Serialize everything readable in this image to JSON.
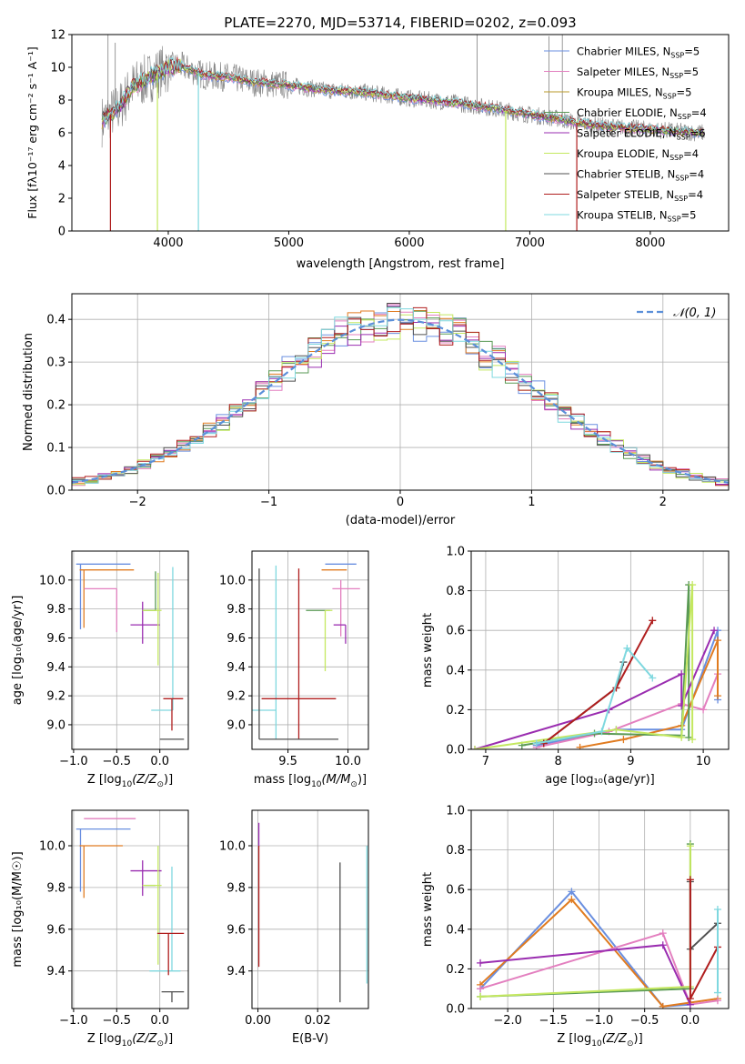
{
  "colors": {
    "Chabrier MILES": "#6a8fe0",
    "Salpeter MILES": "#e37fbf",
    "Kroupa MILES": "#b89a2a",
    "Chabrier ELODIE": "#5a9a55",
    "Salpeter ELODIE": "#9a2db0",
    "Kroupa ELODIE": "#c4e860",
    "Chabrier STELIB": "#505050",
    "Salpeter STELIB": "#b01e1e",
    "Kroupa STELIB": "#7fd8df",
    "orange": "#e07b20",
    "gauss": "#5b8fd9",
    "spectrum": "#808080",
    "grid": "#b0b0b0"
  },
  "chart_data": [
    {
      "id": "spectrum",
      "type": "line",
      "title": "PLATE=2270, MJD=53714, FIBERID=0202, z=0.093",
      "xlabel": "wavelength [Angstrom, rest frame]",
      "ylabel": "Flux [fλ10⁻¹⁷ erg cm⁻² s⁻¹ A⁻¹]",
      "xlim": [
        3200,
        8650
      ],
      "ylim": [
        0,
        12
      ],
      "xticks": [
        4000,
        5000,
        6000,
        7000,
        8000
      ],
      "yticks": [
        0,
        2,
        4,
        6,
        8,
        10,
        12
      ],
      "grid": false,
      "legend_position": "top-right",
      "legend": [
        {
          "label": "Chabrier MILES, N",
          "sub": "SSP",
          "suffix": "=5",
          "color": "Chabrier MILES"
        },
        {
          "label": "Salpeter MILES, N",
          "sub": "SSP",
          "suffix": "=5",
          "color": "Salpeter MILES"
        },
        {
          "label": "Kroupa MILES, N",
          "sub": "SSP",
          "suffix": "=5",
          "color": "Kroupa MILES"
        },
        {
          "label": "Chabrier ELODIE, N",
          "sub": "SSP",
          "suffix": "=4",
          "color": "Chabrier ELODIE"
        },
        {
          "label": "Salpeter ELODIE, N",
          "sub": "SSP",
          "suffix": "=6",
          "color": "Salpeter ELODIE"
        },
        {
          "label": "Kroupa ELODIE, N",
          "sub": "SSP",
          "suffix": "=4",
          "color": "Kroupa ELODIE"
        },
        {
          "label": "Chabrier STELIB, N",
          "sub": "SSP",
          "suffix": "=4",
          "color": "Chabrier STELIB"
        },
        {
          "label": "Salpeter STELIB, N",
          "sub": "SSP",
          "suffix": "=4",
          "color": "Salpeter STELIB"
        },
        {
          "label": "Kroupa STELIB, N",
          "sub": "SSP",
          "suffix": "=5",
          "color": "Kroupa STELIB"
        }
      ],
      "continuum": {
        "x": [
          3450,
          3600,
          3700,
          3800,
          3900,
          4000,
          4100,
          4300,
          4500,
          4700,
          5000,
          5300,
          5600,
          6000,
          6300,
          6500,
          6700,
          7000,
          7200,
          7400,
          7600,
          7800,
          8000,
          8200,
          8400
        ],
        "y": [
          6.7,
          7.6,
          8.8,
          9.2,
          9.6,
          10.0,
          10.1,
          9.5,
          9.4,
          9.1,
          8.9,
          8.6,
          8.5,
          8.1,
          7.9,
          7.7,
          7.5,
          7.1,
          6.9,
          6.6,
          6.4,
          6.3,
          6.2,
          6.1,
          6.0
        ]
      },
      "data_span": [
        3450,
        8450
      ],
      "model_span": [
        3450,
        8450
      ],
      "model_dropouts": [
        {
          "x": 3520,
          "color": "Salpeter STELIB"
        },
        {
          "x": 3910,
          "color": "Kroupa ELODIE"
        },
        {
          "x": 4250,
          "color": "Kroupa STELIB"
        },
        {
          "x": 6800,
          "color": "Kroupa ELODIE"
        },
        {
          "x": 7390,
          "color": "Salpeter STELIB"
        }
      ],
      "spikes": [
        {
          "x": 6563,
          "y": 12.0
        },
        {
          "x": 7160,
          "y": 11.9
        },
        {
          "x": 7270,
          "y": 12.0
        },
        {
          "x": 3500,
          "y": 12.0
        },
        {
          "x": 3560,
          "y": 11.5
        }
      ]
    },
    {
      "id": "residuals",
      "type": "histogram",
      "xlabel": "(data-model)/error",
      "ylabel": "Normed distribution",
      "xlim": [
        -2.5,
        2.5
      ],
      "ylim": [
        0,
        0.46
      ],
      "xticks": [
        -2,
        -1,
        0,
        1,
        2
      ],
      "yticks": [
        0.0,
        0.1,
        0.2,
        0.3,
        0.4
      ],
      "grid": true,
      "bin_width": 0.1,
      "legend_position": "top-right",
      "gauss_label": "𝒩(0, 1)",
      "series_colors": [
        "Chabrier MILES",
        "Salpeter MILES",
        "orange",
        "Chabrier ELODIE",
        "Salpeter ELODIE",
        "Kroupa ELODIE",
        "Chabrier STELIB",
        "Salpeter STELIB",
        "Kroupa STELIB"
      ]
    },
    {
      "id": "age_vs_z",
      "type": "errorbar",
      "xlabel_main": "Z [log",
      "xlabel_tail": "(Z/Z",
      "xlabel_end": ")]",
      "ylabel": "age  [log₁₀(age/yr)]",
      "xlim": [
        -1.02,
        0.33
      ],
      "ylim": [
        8.83,
        10.2
      ],
      "xticks": [
        -1.0,
        -0.5,
        0.0
      ],
      "yticks": [
        9.0,
        9.2,
        9.4,
        9.6,
        9.8,
        10.0
      ],
      "grid": true,
      "points": [
        {
          "color": "Chabrier MILES",
          "x": -0.92,
          "xerr": [
            0.05,
            0.58
          ],
          "y": 10.11,
          "yerr": [
            0.45,
            0.0
          ]
        },
        {
          "color": "orange",
          "x": -0.88,
          "xerr": [
            0.05,
            0.58
          ],
          "y": 10.07,
          "yerr": [
            0.4,
            0.0
          ]
        },
        {
          "color": "Salpeter MILES",
          "x": -0.5,
          "xerr": [
            0.38,
            0.0
          ],
          "y": 9.94,
          "yerr": [
            0.3,
            0.0
          ]
        },
        {
          "color": "Salpeter ELODIE",
          "x": -0.2,
          "xerr": [
            0.14,
            0.2
          ],
          "y": 9.69,
          "yerr": [
            0.13,
            0.16
          ]
        },
        {
          "color": "Chabrier ELODIE",
          "x": -0.05,
          "xerr": [
            0.15,
            0.0
          ],
          "y": 9.79,
          "yerr": [
            0.0,
            0.27
          ]
        },
        {
          "color": "Kroupa ELODIE",
          "x": -0.02,
          "xerr": [
            0.18,
            0.04
          ],
          "y": 9.79,
          "yerr": [
            0.38,
            0.26
          ]
        },
        {
          "color": "Kroupa STELIB",
          "x": 0.15,
          "xerr": [
            0.25,
            0.0
          ],
          "y": 9.1,
          "yerr": [
            0.0,
            0.99
          ]
        },
        {
          "color": "Salpeter STELIB",
          "x": 0.14,
          "xerr": [
            0.1,
            0.13
          ],
          "y": 9.18,
          "yerr": [
            0.22,
            0.0
          ]
        },
        {
          "color": "Chabrier STELIB",
          "x": 0.12,
          "xerr": [
            0.12,
            0.16
          ],
          "y": 8.9,
          "yerr": [
            0.0,
            0.0
          ]
        }
      ]
    },
    {
      "id": "age_vs_mass",
      "type": "errorbar",
      "xlabel_main": "mass [log",
      "xlabel_tail": "(M/M",
      "xlabel_end": ")]",
      "ylabel": "",
      "xlim": [
        9.2,
        10.17
      ],
      "ylim": [
        8.83,
        10.2
      ],
      "xticks": [
        9.5,
        10.0
      ],
      "yticks": [
        9.0,
        9.2,
        9.4,
        9.6,
        9.8,
        10.0
      ],
      "grid": true,
      "points": [
        {
          "color": "Chabrier MILES",
          "x": 9.92,
          "xerr": [
            0.11,
            0.15
          ],
          "y": 10.11,
          "yerr": [
            0.0,
            0.0
          ]
        },
        {
          "color": "orange",
          "x": 9.85,
          "xerr": [
            0.07,
            0.14
          ],
          "y": 10.07,
          "yerr": [
            0.0,
            0.0
          ]
        },
        {
          "color": "Salpeter MILES",
          "x": 9.94,
          "xerr": [
            0.07,
            0.16
          ],
          "y": 9.94,
          "yerr": [
            0.33,
            0.06
          ]
        },
        {
          "color": "Salpeter ELODIE",
          "x": 9.98,
          "xerr": [
            0.1,
            0.0
          ],
          "y": 9.69,
          "yerr": [
            0.13,
            0.0
          ]
        },
        {
          "color": "Chabrier ELODIE",
          "x": 9.65,
          "xerr": [
            0.0,
            0.2
          ],
          "y": 9.79,
          "yerr": [
            0.0,
            0.0
          ]
        },
        {
          "color": "Kroupa ELODIE",
          "x": 9.81,
          "xerr": [
            0.0,
            0.06
          ],
          "y": 9.79,
          "yerr": [
            0.42,
            0.0
          ]
        },
        {
          "color": "Kroupa STELIB",
          "x": 9.4,
          "xerr": [
            0.3,
            0.0
          ],
          "y": 9.1,
          "yerr": [
            0.2,
            1.0
          ]
        },
        {
          "color": "Salpeter STELIB",
          "x": 9.59,
          "xerr": [
            0.31,
            0.31
          ],
          "y": 9.18,
          "yerr": [
            0.28,
            0.9
          ]
        },
        {
          "color": "Chabrier STELIB",
          "x": 9.26,
          "xerr": [
            0.0,
            0.66
          ],
          "y": 8.9,
          "yerr": [
            0.0,
            1.18
          ]
        }
      ]
    },
    {
      "id": "mw_vs_age",
      "type": "line",
      "xlabel": "age  [log₁₀(age/yr)]",
      "ylabel": "mass weight",
      "xlim": [
        6.8,
        10.35
      ],
      "ylim": [
        0,
        1.0
      ],
      "xticks": [
        7,
        8,
        9,
        10
      ],
      "yticks": [
        0.0,
        0.2,
        0.4,
        0.6,
        0.8,
        1.0
      ],
      "grid": true,
      "series": [
        {
          "color": "Chabrier MILES",
          "x": [
            7.7,
            8.8,
            9.7,
            10.2,
            10.2
          ],
          "y": [
            0.02,
            0.1,
            0.1,
            0.6,
            0.25
          ]
        },
        {
          "color": "Salpeter MILES",
          "x": [
            7.7,
            8.7,
            9.7,
            10.0,
            10.2
          ],
          "y": [
            0.01,
            0.09,
            0.23,
            0.2,
            0.38
          ]
        },
        {
          "color": "orange",
          "x": [
            8.3,
            8.9,
            9.7,
            10.2,
            10.2
          ],
          "y": [
            0.01,
            0.05,
            0.12,
            0.55,
            0.27
          ]
        },
        {
          "color": "Chabrier ELODIE",
          "x": [
            7.5,
            8.5,
            9.7,
            9.8,
            9.8
          ],
          "y": [
            0.02,
            0.08,
            0.07,
            0.83,
            0.06
          ]
        },
        {
          "color": "Salpeter ELODIE",
          "x": [
            6.85,
            8.7,
            9.7,
            9.7,
            10.15
          ],
          "y": [
            0.0,
            0.2,
            0.38,
            0.22,
            0.6
          ]
        },
        {
          "color": "Kroupa ELODIE",
          "x": [
            6.85,
            8.8,
            9.7,
            9.85,
            9.85
          ],
          "y": [
            0.0,
            0.1,
            0.06,
            0.83,
            0.05
          ]
        },
        {
          "color": "Chabrier STELIB",
          "x": [
            7.8,
            8.8,
            8.9
          ],
          "y": [
            0.03,
            0.31,
            0.44
          ]
        },
        {
          "color": "Salpeter STELIB",
          "x": [
            7.8,
            8.8,
            9.3
          ],
          "y": [
            0.03,
            0.31,
            0.65
          ]
        },
        {
          "color": "Kroupa STELIB",
          "x": [
            7.7,
            8.6,
            8.95,
            9.3
          ],
          "y": [
            0.03,
            0.09,
            0.51,
            0.36
          ]
        }
      ]
    },
    {
      "id": "mass_vs_z",
      "type": "errorbar",
      "xlabel_main": "Z [log",
      "xlabel_tail": "(Z/Z",
      "xlabel_end": ")]",
      "ylabel": "mass [log₁₀(M/M☉)]",
      "xlim": [
        -1.02,
        0.33
      ],
      "ylim": [
        9.22,
        10.17
      ],
      "xticks": [
        -1.0,
        -0.5,
        0.0
      ],
      "yticks": [
        9.4,
        9.6,
        9.8,
        10.0
      ],
      "grid": true,
      "points": [
        {
          "color": "Chabrier MILES",
          "x": -0.92,
          "xerr": [
            0.05,
            0.58
          ],
          "y": 10.08,
          "yerr": [
            0.3,
            0.0
          ]
        },
        {
          "color": "orange",
          "x": -0.88,
          "xerr": [
            0.05,
            0.45
          ],
          "y": 10.0,
          "yerr": [
            0.25,
            0.0
          ]
        },
        {
          "color": "Salpeter MILES",
          "x": -0.5,
          "xerr": [
            0.38,
            0.22
          ],
          "y": 10.13,
          "yerr": [
            0.0,
            0.0
          ]
        },
        {
          "color": "Salpeter ELODIE",
          "x": -0.2,
          "xerr": [
            0.14,
            0.22
          ],
          "y": 9.88,
          "yerr": [
            0.12,
            0.05
          ]
        },
        {
          "color": "Chabrier ELODIE",
          "x": -0.05,
          "xerr": [
            0.13,
            0.0
          ],
          "y": 9.81,
          "yerr": [
            0.0,
            0.0
          ]
        },
        {
          "color": "Kroupa ELODIE",
          "x": -0.02,
          "xerr": [
            0.18,
            0.04
          ],
          "y": 9.81,
          "yerr": [
            0.38,
            0.19
          ]
        },
        {
          "color": "Kroupa STELIB",
          "x": 0.14,
          "xerr": [
            0.26,
            0.1
          ],
          "y": 9.4,
          "yerr": [
            0.0,
            0.5
          ]
        },
        {
          "color": "Salpeter STELIB",
          "x": 0.1,
          "xerr": [
            0.13,
            0.18
          ],
          "y": 9.58,
          "yerr": [
            0.2,
            0.0
          ]
        },
        {
          "color": "Chabrier STELIB",
          "x": 0.14,
          "xerr": [
            0.12,
            0.14
          ],
          "y": 9.3,
          "yerr": [
            0.05,
            0.0
          ]
        }
      ]
    },
    {
      "id": "mass_vs_ebv",
      "type": "errorbar",
      "xlabel": "E(B-V)",
      "ylabel": "",
      "xlim": [
        -0.002,
        0.037
      ],
      "ylim": [
        9.22,
        10.17
      ],
      "xticks": [
        0.0,
        0.02
      ],
      "yticks": [
        9.4,
        9.6,
        9.8,
        10.0
      ],
      "grid": true,
      "points": [
        {
          "color": "Salpeter ELODIE",
          "x": 0.0003,
          "xerr": [
            0,
            0
          ],
          "y": 10.0,
          "yerr": [
            0.0,
            0.11
          ]
        },
        {
          "color": "Salpeter STELIB",
          "x": 0.0003,
          "xerr": [
            0,
            0
          ],
          "y": 9.6,
          "yerr": [
            0.18,
            0.4
          ]
        },
        {
          "color": "Chabrier STELIB",
          "x": 0.0275,
          "xerr": [
            0,
            0
          ],
          "y": 9.6,
          "yerr": [
            0.35,
            0.32
          ]
        },
        {
          "color": "Kroupa STELIB",
          "x": 0.0365,
          "xerr": [
            0,
            0
          ],
          "y": 9.7,
          "yerr": [
            0.36,
            0.3
          ]
        }
      ]
    },
    {
      "id": "mw_vs_z",
      "type": "line",
      "xlabel_main": "Z [log",
      "xlabel_tail": "(Z/Z",
      "xlabel_end": ")]",
      "ylabel": "mass weight",
      "xlim": [
        -2.4,
        0.42
      ],
      "ylim": [
        0,
        1.0
      ],
      "xticks": [
        -2.0,
        -1.5,
        -1.0,
        -0.5,
        0.0
      ],
      "yticks": [
        0.0,
        0.2,
        0.4,
        0.6,
        0.8,
        1.0
      ],
      "grid": true,
      "series": [
        {
          "color": "Chabrier MILES",
          "x": [
            -2.3,
            -1.3,
            -0.3,
            0.0
          ],
          "y": [
            0.1,
            0.59,
            0.01,
            0.02
          ]
        },
        {
          "color": "orange",
          "x": [
            -2.3,
            -1.3,
            -0.3,
            0.3
          ],
          "y": [
            0.12,
            0.55,
            0.01,
            0.05
          ]
        },
        {
          "color": "Salpeter MILES",
          "x": [
            -2.3,
            -0.3,
            0.0,
            0.3
          ],
          "y": [
            0.1,
            0.38,
            0.02,
            0.04
          ]
        },
        {
          "color": "Salpeter ELODIE",
          "x": [
            -2.3,
            -0.3,
            0.0
          ],
          "y": [
            0.23,
            0.32,
            0.02
          ]
        },
        {
          "color": "Chabrier ELODIE",
          "x": [
            -2.3,
            0.0,
            0.0
          ],
          "y": [
            0.06,
            0.1,
            0.83
          ]
        },
        {
          "color": "Kroupa ELODIE",
          "x": [
            -2.3,
            0.0,
            0.0
          ],
          "y": [
            0.06,
            0.11,
            0.82
          ]
        },
        {
          "color": "Chabrier STELIB",
          "x": [
            0.0,
            0.0,
            0.3
          ],
          "y": [
            0.64,
            0.3,
            0.43
          ]
        },
        {
          "color": "Salpeter STELIB",
          "x": [
            0.0,
            0.0,
            0.3
          ],
          "y": [
            0.65,
            0.05,
            0.31
          ]
        },
        {
          "color": "Kroupa STELIB",
          "x": [
            0.3,
            0.3
          ],
          "y": [
            0.08,
            0.5
          ]
        }
      ]
    }
  ]
}
